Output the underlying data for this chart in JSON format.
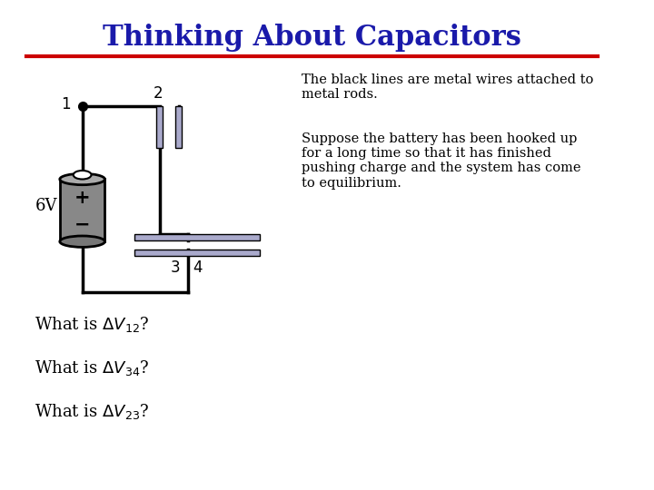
{
  "title": "Thinking About Capacitors",
  "title_color": "#1a1aaa",
  "title_fontsize": 22,
  "bg_color": "#ffffff",
  "red_line_color": "#cc0000",
  "text_color": "#000000",
  "right_text1": "The black lines are metal wires attached to\nmetal rods.",
  "right_text2": "Suppose the battery has been hooked up\nfor a long time so that it has finished\npushing charge and the system has come\nto equilibrium.",
  "label_6V": "6V",
  "battery_color": "#888888",
  "wire_color": "#000000",
  "capacitor_plate_color": "#aaaacc"
}
